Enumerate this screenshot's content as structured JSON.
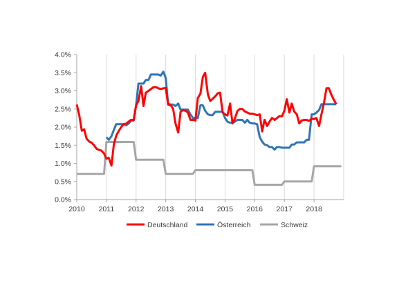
{
  "chart_data": {
    "type": "line",
    "title": "",
    "xlabel": "",
    "ylabel": "",
    "xlim": [
      2010,
      2019
    ],
    "ylim": [
      0.0,
      4.0
    ],
    "x_ticks": [
      2010,
      2011,
      2012,
      2013,
      2014,
      2015,
      2016,
      2017,
      2018
    ],
    "x_tick_labels": [
      "2010",
      "2011",
      "2012",
      "2013",
      "2014",
      "2015",
      "2016",
      "2017",
      "2018"
    ],
    "y_ticks": [
      0.0,
      0.5,
      1.0,
      1.5,
      2.0,
      2.5,
      3.0,
      3.5,
      4.0
    ],
    "y_tick_labels": [
      "0.0%",
      "0.5%",
      "1.0%",
      "1.5%",
      "2.0%",
      "2.5%",
      "3.0%",
      "3.5%",
      "4.0%"
    ],
    "grid": "vertical",
    "legend_position": "bottom",
    "series": [
      {
        "name": "Deutschland",
        "color": "#ff0000",
        "points": [
          [
            2010.0,
            2.62
          ],
          [
            2010.08,
            2.35
          ],
          [
            2010.17,
            1.9
          ],
          [
            2010.25,
            1.94
          ],
          [
            2010.33,
            1.68
          ],
          [
            2010.42,
            1.6
          ],
          [
            2010.5,
            1.57
          ],
          [
            2010.58,
            1.5
          ],
          [
            2010.67,
            1.4
          ],
          [
            2010.75,
            1.37
          ],
          [
            2010.83,
            1.35
          ],
          [
            2010.92,
            1.27
          ],
          [
            2011.0,
            1.13
          ],
          [
            2011.08,
            1.15
          ],
          [
            2011.17,
            0.94
          ],
          [
            2011.25,
            1.52
          ],
          [
            2011.33,
            1.76
          ],
          [
            2011.42,
            1.9
          ],
          [
            2011.5,
            2.0
          ],
          [
            2011.58,
            2.08
          ],
          [
            2011.67,
            2.1
          ],
          [
            2011.75,
            2.15
          ],
          [
            2011.83,
            2.2
          ],
          [
            2011.92,
            2.2
          ],
          [
            2012.0,
            2.6
          ],
          [
            2012.08,
            2.72
          ],
          [
            2012.17,
            3.13
          ],
          [
            2012.25,
            2.58
          ],
          [
            2012.33,
            2.95
          ],
          [
            2012.42,
            3.0
          ],
          [
            2012.5,
            3.05
          ],
          [
            2012.58,
            3.1
          ],
          [
            2012.67,
            3.1
          ],
          [
            2012.75,
            3.07
          ],
          [
            2012.83,
            3.05
          ],
          [
            2012.92,
            3.07
          ],
          [
            2013.0,
            3.08
          ],
          [
            2013.08,
            2.62
          ],
          [
            2013.17,
            2.6
          ],
          [
            2013.25,
            2.5
          ],
          [
            2013.33,
            2.1
          ],
          [
            2013.42,
            1.85
          ],
          [
            2013.5,
            2.42
          ],
          [
            2013.58,
            2.47
          ],
          [
            2013.67,
            2.45
          ],
          [
            2013.75,
            2.4
          ],
          [
            2013.83,
            2.2
          ],
          [
            2013.92,
            2.2
          ],
          [
            2014.0,
            2.18
          ],
          [
            2014.08,
            2.8
          ],
          [
            2014.17,
            2.92
          ],
          [
            2014.25,
            3.38
          ],
          [
            2014.33,
            3.5
          ],
          [
            2014.42,
            2.9
          ],
          [
            2014.5,
            2.72
          ],
          [
            2014.58,
            2.78
          ],
          [
            2014.67,
            2.85
          ],
          [
            2014.75,
            2.93
          ],
          [
            2014.83,
            2.95
          ],
          [
            2014.92,
            2.4
          ],
          [
            2015.0,
            2.35
          ],
          [
            2015.08,
            2.32
          ],
          [
            2015.17,
            2.65
          ],
          [
            2015.25,
            2.1
          ],
          [
            2015.33,
            2.23
          ],
          [
            2015.42,
            2.45
          ],
          [
            2015.5,
            2.5
          ],
          [
            2015.58,
            2.5
          ],
          [
            2015.67,
            2.43
          ],
          [
            2015.75,
            2.4
          ],
          [
            2015.83,
            2.37
          ],
          [
            2015.92,
            2.37
          ],
          [
            2016.0,
            2.35
          ],
          [
            2016.08,
            2.33
          ],
          [
            2016.17,
            2.35
          ],
          [
            2016.25,
            1.88
          ],
          [
            2016.33,
            2.2
          ],
          [
            2016.42,
            2.03
          ],
          [
            2016.5,
            2.15
          ],
          [
            2016.58,
            2.25
          ],
          [
            2016.67,
            2.2
          ],
          [
            2016.75,
            2.25
          ],
          [
            2016.83,
            2.3
          ],
          [
            2016.92,
            2.3
          ],
          [
            2017.0,
            2.45
          ],
          [
            2017.08,
            2.77
          ],
          [
            2017.17,
            2.4
          ],
          [
            2017.25,
            2.65
          ],
          [
            2017.33,
            2.43
          ],
          [
            2017.42,
            2.35
          ],
          [
            2017.5,
            2.1
          ],
          [
            2017.58,
            2.18
          ],
          [
            2017.67,
            2.2
          ],
          [
            2017.75,
            2.2
          ],
          [
            2017.83,
            2.17
          ],
          [
            2017.92,
            2.23
          ],
          [
            2018.0,
            2.22
          ],
          [
            2018.08,
            2.25
          ],
          [
            2018.17,
            2.03
          ],
          [
            2018.25,
            2.35
          ],
          [
            2018.33,
            2.65
          ],
          [
            2018.42,
            3.07
          ],
          [
            2018.5,
            3.07
          ],
          [
            2018.58,
            2.9
          ],
          [
            2018.67,
            2.75
          ],
          [
            2018.75,
            2.63
          ]
        ]
      },
      {
        "name": "Österreich",
        "color": "#2e75b6",
        "points": [
          [
            2011.0,
            1.72
          ],
          [
            2011.08,
            1.65
          ],
          [
            2011.17,
            1.75
          ],
          [
            2011.25,
            1.92
          ],
          [
            2011.33,
            2.08
          ],
          [
            2011.42,
            2.08
          ],
          [
            2011.5,
            2.08
          ],
          [
            2011.58,
            2.08
          ],
          [
            2011.67,
            2.05
          ],
          [
            2011.75,
            2.1
          ],
          [
            2011.83,
            2.18
          ],
          [
            2011.92,
            2.18
          ],
          [
            2012.0,
            2.6
          ],
          [
            2012.08,
            3.2
          ],
          [
            2012.17,
            3.2
          ],
          [
            2012.25,
            3.2
          ],
          [
            2012.33,
            3.3
          ],
          [
            2012.42,
            3.3
          ],
          [
            2012.5,
            3.45
          ],
          [
            2012.58,
            3.45
          ],
          [
            2012.67,
            3.45
          ],
          [
            2012.75,
            3.45
          ],
          [
            2012.83,
            3.42
          ],
          [
            2012.92,
            3.53
          ],
          [
            2013.0,
            3.35
          ],
          [
            2013.08,
            2.65
          ],
          [
            2013.17,
            2.62
          ],
          [
            2013.25,
            2.62
          ],
          [
            2013.33,
            2.58
          ],
          [
            2013.42,
            2.65
          ],
          [
            2013.5,
            2.48
          ],
          [
            2013.58,
            2.48
          ],
          [
            2013.67,
            2.48
          ],
          [
            2013.75,
            2.48
          ],
          [
            2013.83,
            2.35
          ],
          [
            2013.92,
            2.25
          ],
          [
            2014.0,
            2.25
          ],
          [
            2014.08,
            2.25
          ],
          [
            2014.17,
            2.6
          ],
          [
            2014.25,
            2.6
          ],
          [
            2014.33,
            2.45
          ],
          [
            2014.42,
            2.35
          ],
          [
            2014.5,
            2.33
          ],
          [
            2014.58,
            2.33
          ],
          [
            2014.67,
            2.42
          ],
          [
            2014.75,
            2.42
          ],
          [
            2014.83,
            2.42
          ],
          [
            2014.92,
            2.42
          ],
          [
            2015.0,
            2.25
          ],
          [
            2015.08,
            2.15
          ],
          [
            2015.17,
            2.12
          ],
          [
            2015.25,
            2.12
          ],
          [
            2015.33,
            2.15
          ],
          [
            2015.42,
            2.2
          ],
          [
            2015.5,
            2.2
          ],
          [
            2015.58,
            2.2
          ],
          [
            2015.67,
            2.12
          ],
          [
            2015.75,
            2.2
          ],
          [
            2015.83,
            2.12
          ],
          [
            2015.92,
            2.1
          ],
          [
            2016.0,
            2.1
          ],
          [
            2016.08,
            2.08
          ],
          [
            2016.17,
            1.72
          ],
          [
            2016.25,
            1.6
          ],
          [
            2016.33,
            1.52
          ],
          [
            2016.42,
            1.5
          ],
          [
            2016.5,
            1.45
          ],
          [
            2016.58,
            1.45
          ],
          [
            2016.67,
            1.38
          ],
          [
            2016.75,
            1.45
          ],
          [
            2016.83,
            1.45
          ],
          [
            2016.92,
            1.43
          ],
          [
            2017.0,
            1.43
          ],
          [
            2017.08,
            1.43
          ],
          [
            2017.17,
            1.43
          ],
          [
            2017.25,
            1.52
          ],
          [
            2017.33,
            1.52
          ],
          [
            2017.42,
            1.58
          ],
          [
            2017.5,
            1.58
          ],
          [
            2017.58,
            1.58
          ],
          [
            2017.67,
            1.58
          ],
          [
            2017.75,
            1.65
          ],
          [
            2017.83,
            1.65
          ],
          [
            2017.92,
            2.35
          ],
          [
            2018.0,
            2.35
          ],
          [
            2018.08,
            2.4
          ],
          [
            2018.17,
            2.47
          ],
          [
            2018.25,
            2.63
          ],
          [
            2018.33,
            2.63
          ],
          [
            2018.42,
            2.63
          ],
          [
            2018.5,
            2.63
          ],
          [
            2018.58,
            2.63
          ],
          [
            2018.67,
            2.63
          ],
          [
            2018.75,
            2.63
          ]
        ]
      },
      {
        "name": "Schweiz",
        "color": "#a6a6a6",
        "points": [
          [
            2010.0,
            0.71
          ],
          [
            2010.92,
            0.71
          ],
          [
            2011.0,
            1.59
          ],
          [
            2011.92,
            1.59
          ],
          [
            2012.0,
            1.1
          ],
          [
            2012.92,
            1.1
          ],
          [
            2013.0,
            0.71
          ],
          [
            2013.92,
            0.71
          ],
          [
            2014.0,
            0.81
          ],
          [
            2015.92,
            0.81
          ],
          [
            2016.0,
            0.41
          ],
          [
            2016.92,
            0.41
          ],
          [
            2017.0,
            0.5
          ],
          [
            2017.92,
            0.5
          ],
          [
            2018.0,
            0.92
          ],
          [
            2018.92,
            0.92
          ]
        ]
      }
    ]
  }
}
